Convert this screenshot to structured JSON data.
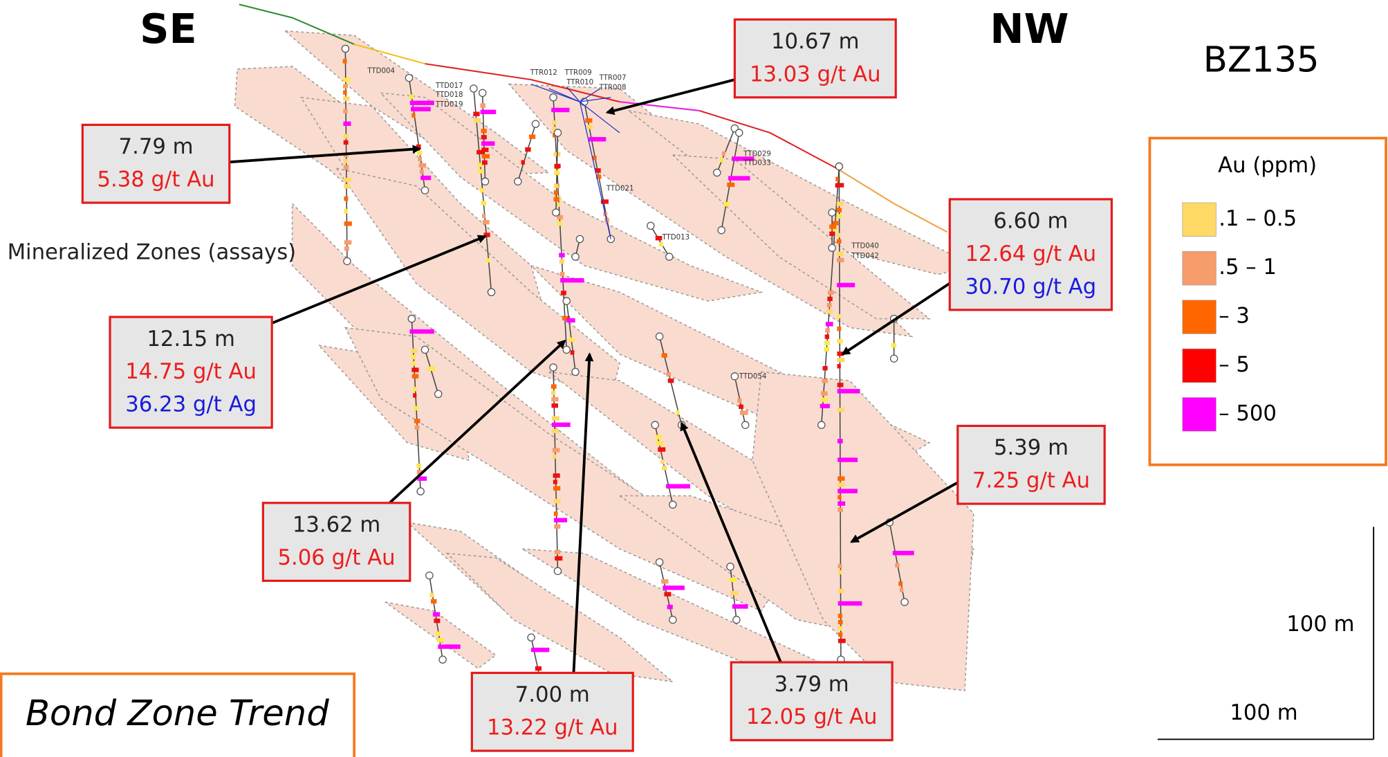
{
  "labels": {
    "se": "SE",
    "nw": "NW",
    "section": "BZ135",
    "mineralized_zones": "Mineralized Zones (assays)",
    "trend": "Bond Zone Trend"
  },
  "callouts": [
    {
      "lines": [
        "10.67 m",
        "13.03 g/t Au"
      ]
    },
    {
      "lines": [
        "7.79 m",
        "5.38 g/t Au"
      ]
    },
    {
      "lines": [
        "12.15 m",
        "14.75 g/t Au",
        "36.23 g/t Ag"
      ]
    },
    {
      "lines": [
        "6.60 m",
        "12.64 g/t Au",
        "30.70 g/t Ag"
      ]
    },
    {
      "lines": [
        "13.62 m",
        "5.06 g/t Au"
      ]
    },
    {
      "lines": [
        "5.39 m",
        "7.25 g/t Au"
      ]
    },
    {
      "lines": [
        "7.00 m",
        "13.22 g/t Au"
      ]
    },
    {
      "lines": [
        "3.79 m",
        "12.05 g/t Au"
      ]
    }
  ],
  "legend": {
    "title": "Au (ppm)",
    "items": [
      ".1 – 0.5",
      ".5 – 1",
      "– 3",
      "– 5",
      "– 500"
    ]
  },
  "scale": {
    "vertical": "100 m",
    "horizontal": "100 m"
  },
  "drill_holes": [
    "TTD004",
    "TTD017",
    "TTD018",
    "TTD019",
    "TTR012",
    "TTR009",
    "TTR010",
    "TTR007",
    "TTR008",
    "TTD029",
    "TTD033",
    "TTD021",
    "TTD013",
    "TTD054",
    "TTD040",
    "TTD042"
  ]
}
